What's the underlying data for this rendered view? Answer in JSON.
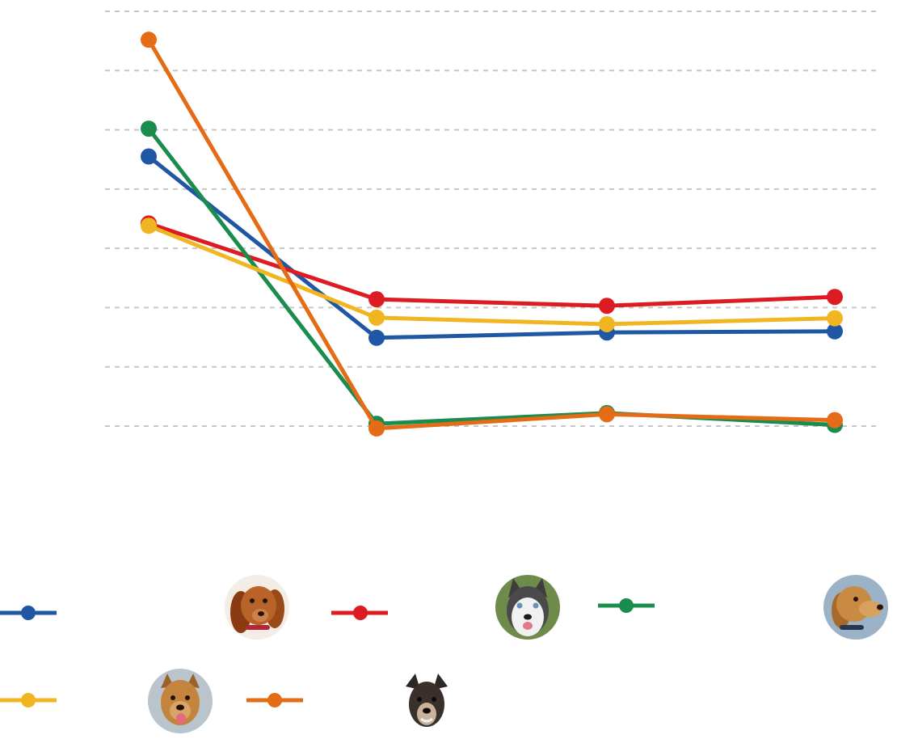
{
  "colors": {
    "blue": "#1f57a4",
    "red": "#dc1c22",
    "green": "#1a8c4e",
    "yellow": "#f1b521",
    "orange": "#e46c16",
    "grid": "#c6c6c6"
  },
  "chart_data": {
    "type": "line",
    "title": "",
    "xlabel": "",
    "ylabel": "",
    "x": [
      1,
      2,
      3,
      4
    ],
    "ylim": [
      0,
      7
    ],
    "grid": true,
    "gridlines": [
      0,
      1,
      2,
      3,
      4,
      5,
      6,
      7
    ],
    "legend_position": "bottom",
    "series": [
      {
        "color": "blue",
        "values": [
          4.55,
          1.49,
          1.58,
          1.6
        ],
        "icon": "dachshund-avatar"
      },
      {
        "color": "red",
        "values": [
          3.42,
          2.14,
          2.03,
          2.18
        ],
        "icon": "husky-avatar"
      },
      {
        "color": "green",
        "values": [
          5.02,
          0.04,
          0.22,
          0.02
        ],
        "icon": "golden-retriever-avatar"
      },
      {
        "color": "yellow",
        "values": [
          3.38,
          1.83,
          1.72,
          1.82
        ],
        "icon": "mixed-breed-dog-avatar"
      },
      {
        "color": "orange",
        "values": [
          6.52,
          -0.04,
          0.2,
          0.1
        ],
        "icon": "shepherd-mix-dog-avatar"
      }
    ]
  }
}
